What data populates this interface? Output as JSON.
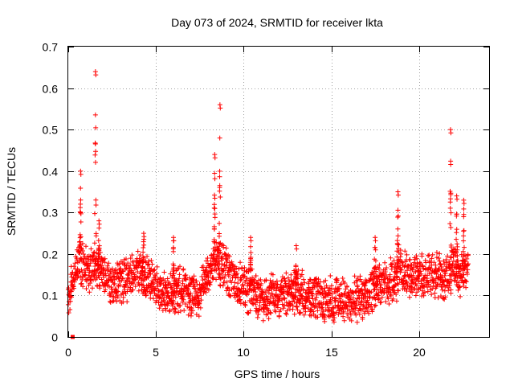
{
  "chart_data": {
    "type": "scatter",
    "title": "Day 073 of 2024, SRMTID for receiver lkta",
    "xlabel": "GPS time / hours",
    "ylabel": "SRMTID / TECUs",
    "xlim": [
      0,
      24
    ],
    "ylim": [
      0,
      0.7
    ],
    "xticks": [
      0,
      5,
      10,
      15,
      20
    ],
    "yticks": [
      0,
      0.1,
      0.2,
      0.3,
      0.4,
      0.5,
      0.6,
      0.7
    ],
    "xtick_labels": [
      "0",
      "5",
      "10",
      "15",
      "20"
    ],
    "ytick_labels": [
      "0",
      "0.1",
      "0.2",
      "0.3",
      "0.4",
      "0.5",
      "0.6",
      "0.7"
    ],
    "grid": true,
    "marker": "+",
    "color": "#ff0000",
    "outlier_marker": "square",
    "outliers": [
      {
        "x": 0.25,
        "y": 0.0
      }
    ],
    "trend": [
      [
        0.0,
        0.1
      ],
      [
        0.3,
        0.15
      ],
      [
        0.6,
        0.18
      ],
      [
        0.9,
        0.17
      ],
      [
        1.2,
        0.16
      ],
      [
        1.5,
        0.17
      ],
      [
        2.0,
        0.15
      ],
      [
        2.5,
        0.13
      ],
      [
        3.0,
        0.14
      ],
      [
        3.5,
        0.14
      ],
      [
        4.0,
        0.16
      ],
      [
        4.5,
        0.14
      ],
      [
        5.0,
        0.12
      ],
      [
        5.5,
        0.1
      ],
      [
        6.0,
        0.11
      ],
      [
        6.5,
        0.12
      ],
      [
        7.0,
        0.1
      ],
      [
        7.5,
        0.1
      ],
      [
        8.0,
        0.16
      ],
      [
        8.5,
        0.19
      ],
      [
        9.0,
        0.16
      ],
      [
        9.5,
        0.13
      ],
      [
        10.0,
        0.12
      ],
      [
        10.5,
        0.11
      ],
      [
        11.0,
        0.09
      ],
      [
        11.5,
        0.1
      ],
      [
        12.0,
        0.1
      ],
      [
        12.5,
        0.1
      ],
      [
        13.0,
        0.11
      ],
      [
        13.5,
        0.1
      ],
      [
        14.0,
        0.09
      ],
      [
        14.5,
        0.09
      ],
      [
        15.0,
        0.09
      ],
      [
        15.5,
        0.09
      ],
      [
        16.0,
        0.09
      ],
      [
        16.5,
        0.09
      ],
      [
        17.0,
        0.1
      ],
      [
        17.5,
        0.12
      ],
      [
        18.0,
        0.14
      ],
      [
        18.5,
        0.13
      ],
      [
        19.0,
        0.16
      ],
      [
        19.5,
        0.15
      ],
      [
        20.0,
        0.15
      ],
      [
        20.5,
        0.15
      ],
      [
        21.0,
        0.15
      ],
      [
        21.5,
        0.14
      ],
      [
        22.0,
        0.17
      ],
      [
        22.5,
        0.15
      ],
      [
        22.8,
        0.16
      ]
    ],
    "spikes": [
      {
        "x": 0.7,
        "peak": 0.4,
        "width": 0.1
      },
      {
        "x": 1.55,
        "peak": 0.64,
        "width": 0.12
      },
      {
        "x": 1.75,
        "peak": 0.28,
        "width": 0.1
      },
      {
        "x": 4.3,
        "peak": 0.25,
        "width": 0.2
      },
      {
        "x": 6.0,
        "peak": 0.24,
        "width": 0.1
      },
      {
        "x": 8.35,
        "peak": 0.44,
        "width": 0.1
      },
      {
        "x": 8.65,
        "peak": 0.56,
        "width": 0.1
      },
      {
        "x": 10.4,
        "peak": 0.24,
        "width": 0.1
      },
      {
        "x": 13.0,
        "peak": 0.22,
        "width": 0.1
      },
      {
        "x": 17.5,
        "peak": 0.24,
        "width": 0.2
      },
      {
        "x": 18.8,
        "peak": 0.35,
        "width": 0.15
      },
      {
        "x": 21.8,
        "peak": 0.5,
        "width": 0.1
      },
      {
        "x": 22.15,
        "peak": 0.34,
        "width": 0.1
      },
      {
        "x": 22.55,
        "peak": 0.33,
        "width": 0.1
      }
    ],
    "scatter_spread": 0.04,
    "point_step_hours": 0.025
  }
}
